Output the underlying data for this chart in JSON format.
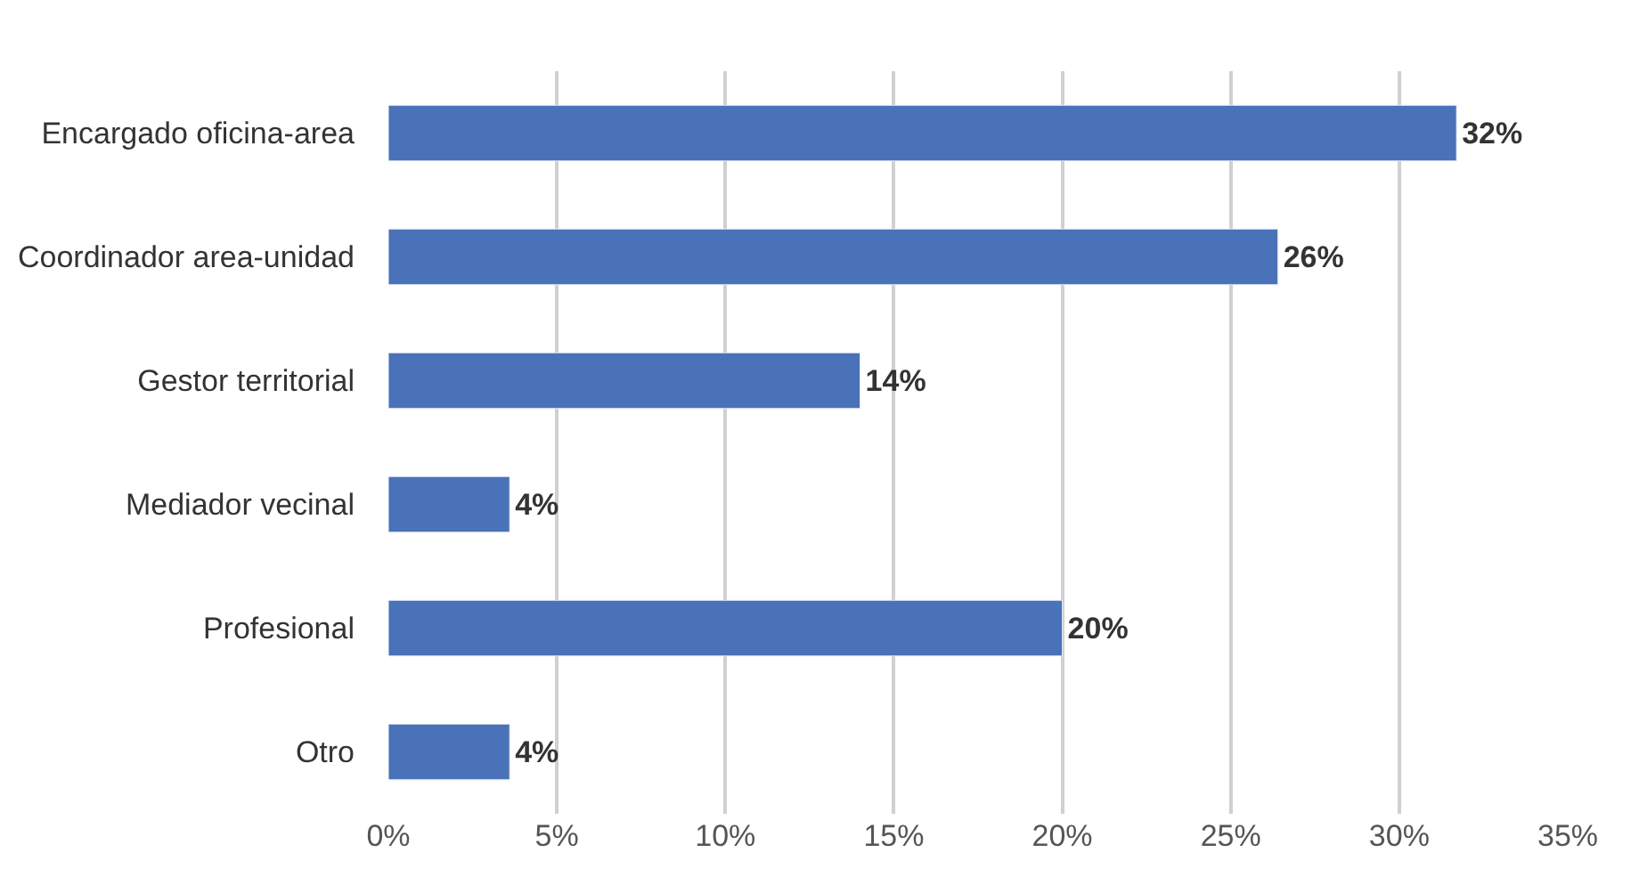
{
  "chart_data": {
    "type": "bar",
    "orientation": "horizontal",
    "categories": [
      "Encargado oficina-area",
      "Coordinador area-unidad",
      "Gestor territorial",
      "Mediador vecinal",
      "Profesional",
      "Otro"
    ],
    "values": [
      31.7,
      26.4,
      14.0,
      3.6,
      20.0,
      3.6
    ],
    "value_labels": [
      "32%",
      "26%",
      "14%",
      "4%",
      "20%",
      "4%"
    ],
    "color": "#4a72b8",
    "xlim": [
      0,
      35
    ],
    "xticks": [
      {
        "value": 0,
        "label": "0%"
      },
      {
        "value": 5,
        "label": "5%"
      },
      {
        "value": 10,
        "label": "10%"
      },
      {
        "value": 15,
        "label": "15%"
      },
      {
        "value": 20,
        "label": "20%"
      },
      {
        "value": 25,
        "label": "25%"
      },
      {
        "value": 30,
        "label": "30%"
      },
      {
        "value": 35,
        "label": "35%"
      }
    ],
    "grid": "x"
  }
}
